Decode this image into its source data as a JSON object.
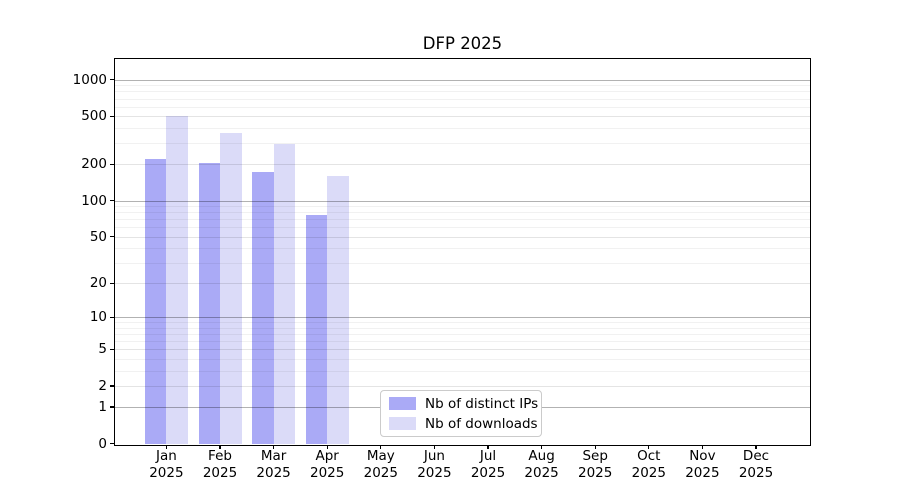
{
  "title": "DFP 2025",
  "chart_data": {
    "type": "bar",
    "title": "DFP 2025",
    "xlabel": "",
    "ylabel": "",
    "yscale": "log-like (position proportional to log10(1+value), 0 at baseline)",
    "yticks": [
      0,
      1,
      2,
      5,
      10,
      20,
      50,
      100,
      200,
      500,
      1000
    ],
    "ylim": [
      0,
      1450
    ],
    "grid": true,
    "legend_position": "lower center",
    "categories": [
      "Jan 2025",
      "Feb 2025",
      "Mar 2025",
      "Apr 2025",
      "May 2025",
      "Jun 2025",
      "Jul 2025",
      "Aug 2025",
      "Sep 2025",
      "Oct 2025",
      "Nov 2025",
      "Dec 2025"
    ],
    "series": [
      {
        "name": "Nb of distinct IPs",
        "color": "#aaaaf6",
        "values": [
          220,
          204,
          172,
          76,
          null,
          null,
          null,
          null,
          null,
          null,
          null,
          null
        ]
      },
      {
        "name": "Nb of downloads",
        "color": "#dbdbf8",
        "values": [
          500,
          360,
          294,
          160,
          null,
          null,
          null,
          null,
          null,
          null,
          null,
          null
        ]
      }
    ]
  }
}
